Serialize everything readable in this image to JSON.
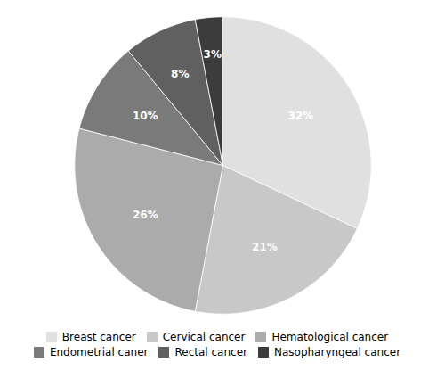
{
  "chart_data": {
    "type": "pie",
    "categories": [
      "Breast cancer",
      "Cervical cancer",
      "Hematological cancer",
      "Endometrial caner",
      "Rectal cancer",
      "Nasopharyngeal cancer"
    ],
    "values": [
      32,
      21,
      26,
      10,
      8,
      3
    ],
    "value_labels": [
      "32%",
      "21%",
      "26%",
      "10%",
      "8%",
      "3%"
    ],
    "colors": [
      "#e0e0e0",
      "#c8c8c8",
      "#ababab",
      "#7a7a7a",
      "#606060",
      "#3c3c3c"
    ],
    "data_labels": true,
    "legend": "bottom"
  }
}
